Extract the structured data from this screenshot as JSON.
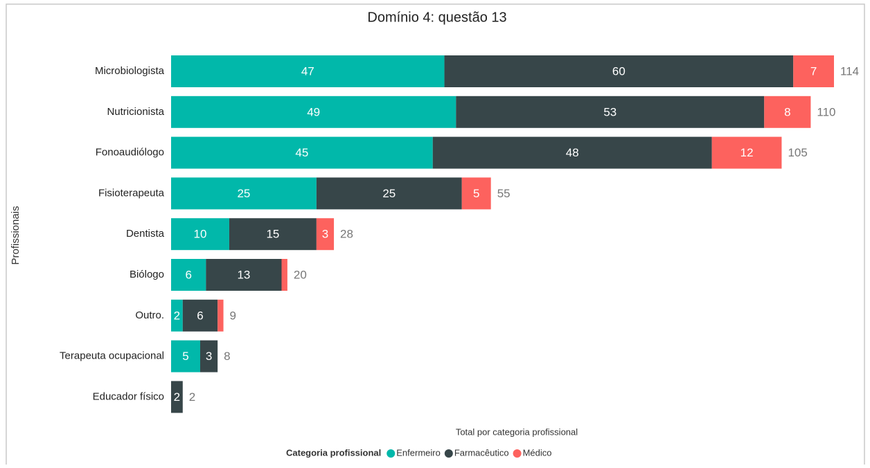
{
  "chart_data": {
    "type": "stacked_bar_horizontal",
    "title": "Domínio 4: questão 13",
    "y_label": "Profissionais",
    "x_label": "Total por categoria profissional",
    "legend_title": "Categoria profissional",
    "categories": [
      "Microbiologista",
      "Nutricionista",
      "Fonoaudiólogo",
      "Fisioterapeuta",
      "Dentista",
      "Biólogo",
      "Outro.",
      "Terapeuta ocupacional",
      "Educador físico"
    ],
    "series": [
      {
        "name": "Enfermeiro",
        "color": "#01B8AA",
        "values": [
          47,
          49,
          45,
          25,
          10,
          6,
          2,
          5,
          0
        ]
      },
      {
        "name": "Farmacêutico",
        "color": "#374649",
        "values": [
          60,
          53,
          48,
          25,
          15,
          13,
          6,
          3,
          2
        ]
      },
      {
        "name": "Médico",
        "color": "#FD625E",
        "values": [
          7,
          8,
          12,
          5,
          3,
          1,
          1,
          0,
          0
        ]
      }
    ],
    "totals": [
      114,
      110,
      105,
      55,
      28,
      20,
      9,
      8,
      2
    ]
  }
}
